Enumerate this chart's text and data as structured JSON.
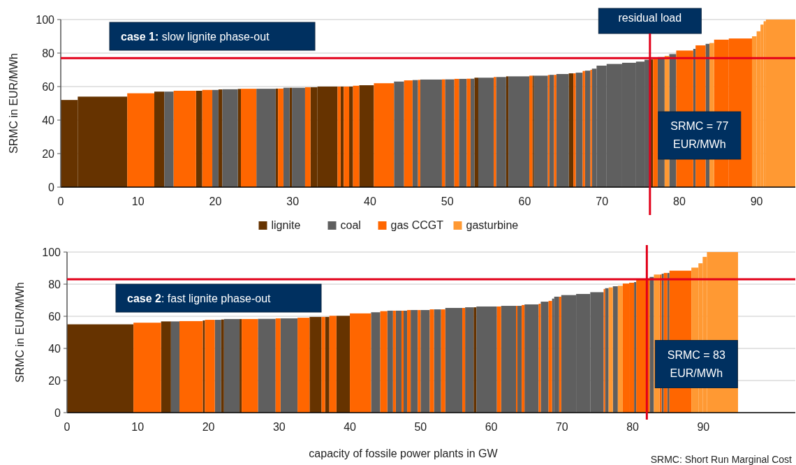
{
  "chart_data": [
    {
      "type": "histogram",
      "ylabel": "SRMC in EUR/MWh",
      "bins": [
        0,
        2.2,
        8.6,
        12.1,
        13.4,
        14.6,
        17.5,
        18.3,
        19.6,
        20.4,
        20.9,
        22.9,
        23.3,
        25.3,
        27.8,
        28.1,
        28.8,
        29.6,
        29.9,
        31.6,
        32.3,
        33.2,
        35.8,
        36.2,
        36.6,
        37.3,
        37.8,
        38.6,
        40.5,
        43.1,
        44.4,
        45.5,
        46.2,
        46.5,
        49.3,
        49.7,
        50.9,
        51.5,
        52.5,
        53,
        53.5,
        54,
        56,
        56.3,
        57.6,
        57.9,
        60.6,
        61,
        61.2,
        63,
        63.2,
        63.8,
        64.1,
        65.7,
        66.3,
        66.6,
        67.5,
        67.8,
        68.5,
        68.7,
        69.3,
        70.6,
        72.6,
        74.4,
        75.5,
        76.2,
        76.6,
        77.2,
        78.1,
        78.7,
        79.6,
        81.8,
        82.1,
        83.4,
        83.9,
        84.5,
        86.4,
        89.4,
        90,
        90.5,
        90.9,
        91.2,
        95
      ],
      "series": [
        {
          "name": "lignite",
          "color": "#663300",
          "values": [
            52,
            54,
            null,
            57,
            null,
            null,
            57.5,
            null,
            null,
            58.3,
            null,
            58.6,
            null,
            null,
            58.8,
            null,
            null,
            59.3,
            null,
            null,
            59.6,
            60,
            null,
            60,
            null,
            60,
            null,
            60.8,
            null,
            null,
            null,
            null,
            null,
            null,
            null,
            null,
            null,
            null,
            null,
            null,
            65.3,
            null,
            null,
            null,
            66.1,
            null,
            null,
            66.5,
            null,
            null,
            null,
            null,
            null,
            67.9,
            null,
            null,
            null,
            null,
            null,
            null,
            null,
            null,
            null,
            null,
            null,
            76.2,
            null,
            null,
            null,
            null,
            null,
            null,
            null,
            null,
            null,
            null,
            null,
            null,
            null,
            null,
            null,
            null
          ]
        },
        {
          "name": "coal",
          "color": "#5f5f5f",
          "values": [
            null,
            null,
            null,
            null,
            57,
            null,
            null,
            null,
            58,
            null,
            58.4,
            null,
            null,
            58.7,
            null,
            null,
            59.3,
            null,
            59.3,
            null,
            null,
            null,
            null,
            null,
            null,
            null,
            null,
            null,
            null,
            63,
            null,
            63.9,
            null,
            64.2,
            null,
            64.3,
            null,
            64.6,
            null,
            64.7,
            null,
            65.3,
            null,
            65.7,
            null,
            66.1,
            null,
            null,
            66.5,
            null,
            67,
            null,
            67.5,
            null,
            null,
            68.3,
            null,
            69.5,
            null,
            70.7,
            72.5,
            73.5,
            74.2,
            74.9,
            76,
            null,
            null,
            77.6,
            null,
            79.4,
            null,
            82.5,
            null,
            85.5,
            null,
            null,
            null,
            null,
            null,
            null,
            null,
            null
          ]
        },
        {
          "name": "gas CCGT",
          "color": "#ff6600",
          "values": [
            null,
            null,
            56,
            null,
            null,
            57.5,
            null,
            58,
            null,
            null,
            null,
            null,
            58.7,
            null,
            null,
            58.8,
            null,
            null,
            null,
            59.6,
            null,
            null,
            60,
            null,
            60,
            null,
            60.5,
            null,
            62,
            null,
            63.7,
            null,
            64,
            null,
            64.3,
            null,
            64.6,
            null,
            64.7,
            null,
            null,
            null,
            65.7,
            null,
            null,
            null,
            66.5,
            null,
            null,
            66.9,
            null,
            67,
            null,
            null,
            67.9,
            null,
            69.3,
            null,
            70,
            null,
            null,
            null,
            null,
            null,
            null,
            null,
            76.5,
            null,
            null,
            null,
            81.5,
            null,
            84.6,
            null,
            null,
            88,
            88.7,
            null,
            null,
            null,
            null,
            null
          ]
        },
        {
          "name": "gasturbine",
          "color": "#ff9933",
          "values": [
            null,
            null,
            null,
            null,
            null,
            null,
            null,
            null,
            null,
            null,
            null,
            null,
            null,
            null,
            null,
            null,
            null,
            null,
            null,
            null,
            null,
            null,
            null,
            null,
            null,
            null,
            null,
            null,
            null,
            null,
            null,
            null,
            null,
            null,
            null,
            null,
            null,
            null,
            null,
            null,
            null,
            null,
            null,
            null,
            null,
            null,
            null,
            null,
            null,
            null,
            null,
            null,
            null,
            null,
            null,
            null,
            null,
            null,
            null,
            null,
            null,
            null,
            null,
            null,
            null,
            null,
            null,
            null,
            78.3,
            null,
            null,
            null,
            null,
            null,
            86,
            null,
            null,
            90,
            93,
            97,
            99,
            100
          ]
        }
      ],
      "xlim": [
        0,
        95
      ],
      "ylim": [
        0,
        100
      ],
      "xticks": [
        0,
        10,
        20,
        30,
        40,
        50,
        60,
        70,
        80,
        90
      ],
      "yticks": [
        0,
        20,
        40,
        60,
        80,
        100
      ],
      "grid": "y",
      "legend": "bottom",
      "ref_lines": [
        {
          "axis": "x",
          "value": 76.2,
          "label": "residual load",
          "color": "#e2001a"
        },
        {
          "axis": "y",
          "value": 77,
          "color": "#e2001a"
        }
      ],
      "annotations": [
        "case 1: slow lignite phase-out",
        "SRMC = 77 EUR/MWh"
      ]
    },
    {
      "type": "histogram",
      "ylabel": "SRMC in EUR/MWh",
      "xlabel": "capacity of fossile power plants in GW",
      "bins": [
        0,
        9.4,
        13.3,
        14.7,
        15.9,
        19.2,
        19.5,
        20.9,
        21.8,
        22.2,
        24.4,
        24.7,
        27,
        29.5,
        30.2,
        32.6,
        34.3,
        36,
        36.5,
        37.1,
        38.1,
        40,
        43,
        44.3,
        45.3,
        46.1,
        46.5,
        47.3,
        47.6,
        48.1,
        48.6,
        49.6,
        50,
        51.3,
        51.9,
        52.9,
        53.5,
        55.9,
        56.3,
        57.5,
        57.9,
        60.8,
        61.4,
        63.5,
        63.7,
        64.3,
        64.7,
        66.7,
        67,
        68.1,
        68.6,
        68.9,
        69.6,
        69.9,
        72,
        74,
        75.9,
        76.1,
        76.6,
        77.2,
        77.9,
        78.6,
        79.5,
        80.2,
        80.5,
        82.4,
        83,
        83.8,
        84.1,
        84.4,
        84.9,
        85.2,
        88.3,
        89.3,
        89.9,
        90.5,
        94.9
      ],
      "series": [
        {
          "color": "#663300",
          "values": [
            55,
            null,
            56.8,
            null,
            null,
            57.4,
            null,
            null,
            58,
            null,
            58.3,
            null,
            null,
            null,
            null,
            null,
            59.6,
            null,
            59.6,
            null,
            60.3,
            null,
            null,
            null,
            null,
            null,
            null,
            null,
            null,
            null,
            null,
            null,
            null,
            null,
            null,
            null,
            null,
            null,
            null,
            65.6,
            null,
            null,
            null,
            null,
            null,
            null,
            null,
            null,
            null,
            null,
            null,
            null,
            null,
            null,
            null,
            null,
            null,
            null,
            null,
            null,
            null,
            null,
            null,
            null,
            null,
            null,
            null,
            null,
            null,
            null,
            null,
            null,
            null,
            null,
            null,
            null
          ]
        },
        {
          "color": "#5f5f5f",
          "values": [
            null,
            null,
            null,
            56.8,
            null,
            null,
            null,
            57.8,
            null,
            58.3,
            null,
            null,
            58.4,
            null,
            58.7,
            null,
            null,
            null,
            null,
            null,
            null,
            null,
            62.5,
            null,
            63.5,
            null,
            63.5,
            null,
            63.5,
            null,
            63.9,
            null,
            63.9,
            null,
            64.3,
            null,
            65.2,
            null,
            65.6,
            null,
            66.1,
            null,
            66.5,
            null,
            66.5,
            null,
            67.4,
            null,
            69.1,
            null,
            71,
            72.2,
            null,
            73.2,
            73.9,
            75,
            null,
            77.5,
            null,
            78.7,
            null,
            null,
            null,
            81.3,
            null,
            84.5,
            null,
            null,
            86.5,
            null,
            87,
            null,
            null,
            null,
            null,
            null
          ]
        },
        {
          "color": "#ff6600",
          "values": [
            null,
            56,
            null,
            null,
            57,
            null,
            57.8,
            null,
            null,
            null,
            null,
            58.3,
            null,
            58.7,
            null,
            59.1,
            null,
            59.6,
            null,
            60.3,
            null,
            61.8,
            null,
            63.2,
            null,
            63.5,
            null,
            63.5,
            null,
            63.9,
            null,
            63.9,
            null,
            64.3,
            null,
            64.3,
            null,
            65.2,
            null,
            null,
            null,
            66.1,
            null,
            66.5,
            null,
            67,
            null,
            67.8,
            null,
            69.6,
            null,
            null,
            72.2,
            null,
            null,
            null,
            77,
            null,
            null,
            null,
            null,
            80.4,
            80.9,
            null,
            83,
            null,
            null,
            86,
            null,
            87,
            null,
            88.4,
            null,
            null,
            null,
            null
          ]
        },
        {
          "color": "#ff9933",
          "values": [
            null,
            null,
            null,
            null,
            null,
            null,
            null,
            null,
            null,
            null,
            null,
            null,
            null,
            null,
            null,
            null,
            null,
            null,
            null,
            null,
            null,
            null,
            null,
            null,
            null,
            null,
            null,
            null,
            null,
            null,
            null,
            null,
            null,
            null,
            null,
            null,
            null,
            null,
            null,
            null,
            null,
            null,
            null,
            null,
            null,
            null,
            null,
            null,
            null,
            null,
            null,
            null,
            null,
            null,
            null,
            null,
            null,
            null,
            78,
            null,
            79,
            null,
            null,
            null,
            null,
            null,
            86,
            null,
            null,
            null,
            null,
            null,
            90.3,
            93,
            97,
            100
          ]
        }
      ],
      "xlim": [
        0,
        103
      ],
      "ylim": [
        0,
        100
      ],
      "xticks": [
        0,
        10,
        20,
        30,
        40,
        50,
        60,
        70,
        80,
        90
      ],
      "yticks": [
        0,
        20,
        40,
        60,
        80,
        100
      ],
      "grid": "y",
      "ref_lines": [
        {
          "axis": "x",
          "value": 82,
          "color": "#e2001a"
        },
        {
          "axis": "y",
          "value": 83,
          "color": "#e2001a"
        }
      ],
      "annotations": [
        "case 2: fast lignite phase-out",
        "SRMC = 83 EUR/MWh",
        "SRMC: Short Run Marginal Cost"
      ]
    }
  ]
}
